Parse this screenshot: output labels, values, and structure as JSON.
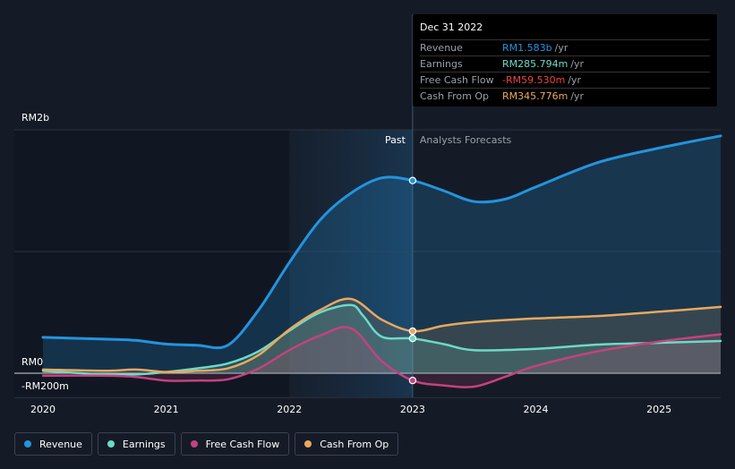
{
  "chart_data": {
    "type": "line",
    "y_axis": {
      "labels": [
        "RM2b",
        "RM0",
        "-RM200m"
      ],
      "ylim": [
        -200,
        2000
      ],
      "unit": "RM m"
    },
    "x_axis": {
      "labels": [
        "2020",
        "2021",
        "2022",
        "2023",
        "2024",
        "2025"
      ],
      "xlim": [
        2020.0,
        2025.5
      ]
    },
    "divider": {
      "past_label": "Past",
      "forecast_label": "Analysts Forecasts",
      "date": "2022-12-31"
    },
    "series": [
      {
        "name": "Revenue",
        "color": "#2394df",
        "x": [
          2020.0,
          2020.5,
          2020.75,
          2021.0,
          2021.25,
          2021.5,
          2021.75,
          2022.0,
          2022.25,
          2022.5,
          2022.75,
          2023.0,
          2023.25,
          2023.5,
          2023.75,
          2024.0,
          2024.5,
          2025.0,
          2025.5
        ],
        "values": [
          295,
          280,
          270,
          240,
          230,
          230,
          520,
          910,
          1260,
          1480,
          1605,
          1583,
          1500,
          1410,
          1430,
          1530,
          1730,
          1850,
          1950
        ]
      },
      {
        "name": "Earnings",
        "color": "#6cdac8",
        "x": [
          2020.0,
          2020.5,
          2020.75,
          2021.0,
          2021.25,
          2021.5,
          2021.75,
          2022.0,
          2022.25,
          2022.5,
          2022.6,
          2022.75,
          2023.0,
          2023.25,
          2023.5,
          2024.0,
          2024.5,
          2025.0,
          2025.5
        ],
        "values": [
          20,
          -10,
          -10,
          10,
          40,
          80,
          180,
          350,
          500,
          560,
          470,
          300,
          285.794,
          240,
          190,
          200,
          235,
          250,
          265
        ]
      },
      {
        "name": "Free Cash Flow",
        "color": "#c4427f",
        "x": [
          2020.0,
          2020.5,
          2020.75,
          2021.0,
          2021.25,
          2021.5,
          2021.75,
          2022.0,
          2022.25,
          2022.5,
          2022.75,
          2023.0,
          2023.25,
          2023.5,
          2023.75,
          2024.0,
          2024.5,
          2025.0,
          2025.5
        ],
        "values": [
          -20,
          -20,
          -30,
          -60,
          -60,
          -50,
          40,
          190,
          310,
          370,
          100,
          -59.53,
          -100,
          -110,
          -30,
          60,
          180,
          260,
          320
        ]
      },
      {
        "name": "Cash From Op",
        "color": "#e9a85f",
        "x": [
          2020.0,
          2020.5,
          2020.75,
          2021.0,
          2021.25,
          2021.5,
          2021.75,
          2022.0,
          2022.25,
          2022.5,
          2022.75,
          2023.0,
          2023.25,
          2023.5,
          2024.0,
          2024.5,
          2025.0,
          2025.5
        ],
        "values": [
          30,
          20,
          30,
          10,
          20,
          40,
          150,
          360,
          520,
          610,
          440,
          345.776,
          390,
          420,
          450,
          470,
          505,
          545
        ]
      }
    ],
    "tooltip": {
      "date": "Dec 31 2022",
      "rows": [
        {
          "name": "Revenue",
          "value": "RM1.583b",
          "unit": "/yr",
          "color": "#2394df"
        },
        {
          "name": "Earnings",
          "value": "RM285.794m",
          "unit": "/yr",
          "color": "#6cdac8"
        },
        {
          "name": "Free Cash Flow",
          "value": "-RM59.530m",
          "unit": "/yr",
          "color": "#e8473f"
        },
        {
          "name": "Cash From Op",
          "value": "RM345.776m",
          "unit": "/yr",
          "color": "#e9a85f"
        }
      ]
    },
    "legend": [
      {
        "name": "Revenue",
        "color": "#2394df"
      },
      {
        "name": "Earnings",
        "color": "#6cdac8"
      },
      {
        "name": "Free Cash Flow",
        "color": "#c4427f"
      },
      {
        "name": "Cash From Op",
        "color": "#e9a85f"
      }
    ],
    "grid": true,
    "legend_placement": "bottom-left"
  }
}
